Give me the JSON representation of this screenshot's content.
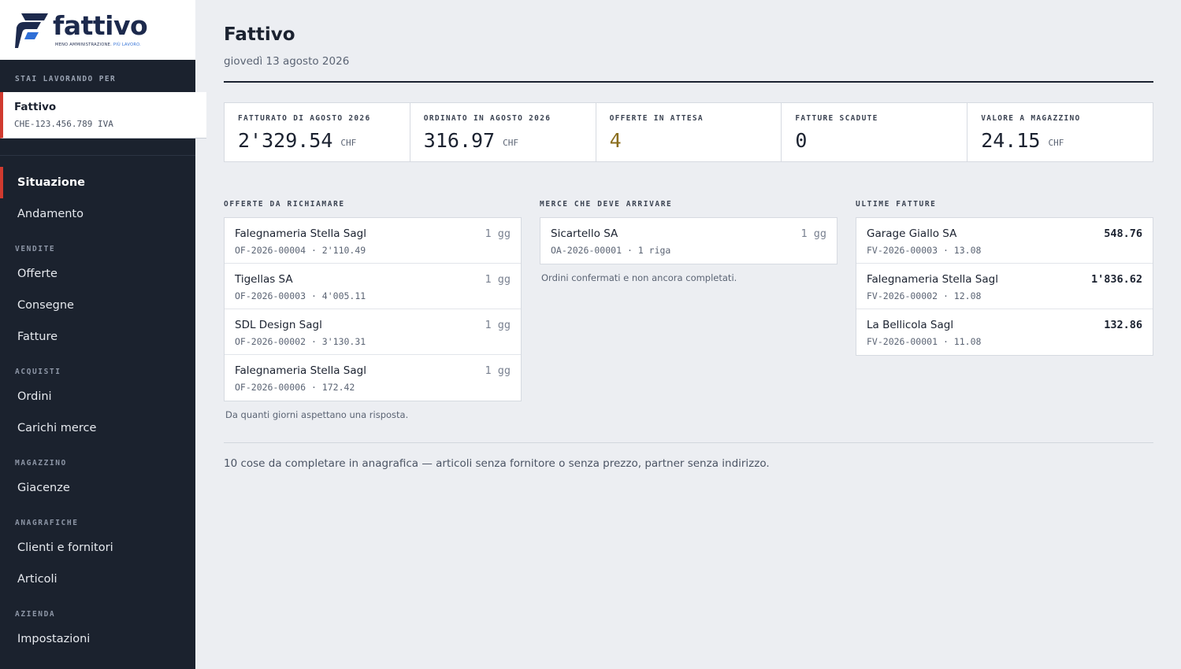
{
  "brand": {
    "name": "fattivo",
    "tagline_a": "MENO AMMINISTRAZIONE.",
    "tagline_b": "PIÙ LAVORO.",
    "accent": "#d03a2f",
    "logo_color": "#1d2a4d",
    "logo_blue": "#2f6fd6"
  },
  "sidebar": {
    "working_for_label": "STAI LAVORANDO PER",
    "company": {
      "name": "Fattivo",
      "vat": "CHE-123.456.789 IVA"
    },
    "top_items": [
      {
        "label": "Situazione",
        "active": true
      },
      {
        "label": "Andamento"
      }
    ],
    "sections": [
      {
        "title": "VENDITE",
        "items": [
          "Offerte",
          "Consegne",
          "Fatture"
        ]
      },
      {
        "title": "ACQUISTI",
        "items": [
          "Ordini",
          "Carichi merce"
        ]
      },
      {
        "title": "MAGAZZINO",
        "items": [
          "Giacenze"
        ]
      },
      {
        "title": "ANAGRAFICHE",
        "items": [
          "Clienti e fornitori",
          "Articoli"
        ]
      },
      {
        "title": "AZIENDA",
        "items": [
          "Impostazioni"
        ]
      }
    ]
  },
  "header": {
    "title": "Fattivo",
    "date": "giovedì 13 agosto 2026"
  },
  "kpis": [
    {
      "label": "FATTURATO DI AGOSTO 2026",
      "value": "2'329.54",
      "unit": "CHF"
    },
    {
      "label": "ORDINATO IN AGOSTO 2026",
      "value": "316.97",
      "unit": "CHF"
    },
    {
      "label": "OFFERTE IN ATTESA",
      "value": "4",
      "unit": "",
      "warn": true
    },
    {
      "label": "FATTURE SCADUTE",
      "value": "0",
      "unit": ""
    },
    {
      "label": "VALORE A MAGAZZINO",
      "value": "24.15",
      "unit": "CHF"
    }
  ],
  "offers": {
    "title": "OFFERTE DA RICHIAMARE",
    "rows": [
      {
        "name": "Falegnameria Stella Sagl",
        "ref": "OF-2026-00004",
        "amount": "2'110.49",
        "age": "1 gg"
      },
      {
        "name": "Tigellas SA",
        "ref": "OF-2026-00003",
        "amount": "4'005.11",
        "age": "1 gg"
      },
      {
        "name": "SDL Design Sagl",
        "ref": "OF-2026-00002",
        "amount": "3'130.31",
        "age": "1 gg"
      },
      {
        "name": "Falegnameria Stella Sagl",
        "ref": "OF-2026-00006",
        "amount": "172.42",
        "age": "1 gg"
      }
    ],
    "note": "Da quanti giorni aspettano una risposta."
  },
  "incoming": {
    "title": "MERCE CHE DEVE ARRIVARE",
    "rows": [
      {
        "name": "Sicartello SA",
        "ref": "OA-2026-00001",
        "detail": "1 riga",
        "age": "1 gg"
      }
    ],
    "note": "Ordini confermati e non ancora completati."
  },
  "invoices": {
    "title": "ULTIME FATTURE",
    "rows": [
      {
        "name": "Garage Giallo SA",
        "ref": "FV-2026-00003",
        "date": "13.08",
        "amount": "548.76"
      },
      {
        "name": "Falegnameria Stella Sagl",
        "ref": "FV-2026-00002",
        "date": "12.08",
        "amount": "1'836.62"
      },
      {
        "name": "La Bellicola Sagl",
        "ref": "FV-2026-00001",
        "date": "11.08",
        "amount": "132.86"
      }
    ]
  },
  "footer_note": "10 cose da completare in anagrafica — articoli senza fornitore o senza prezzo, partner senza indirizzo.",
  "separator": " · "
}
